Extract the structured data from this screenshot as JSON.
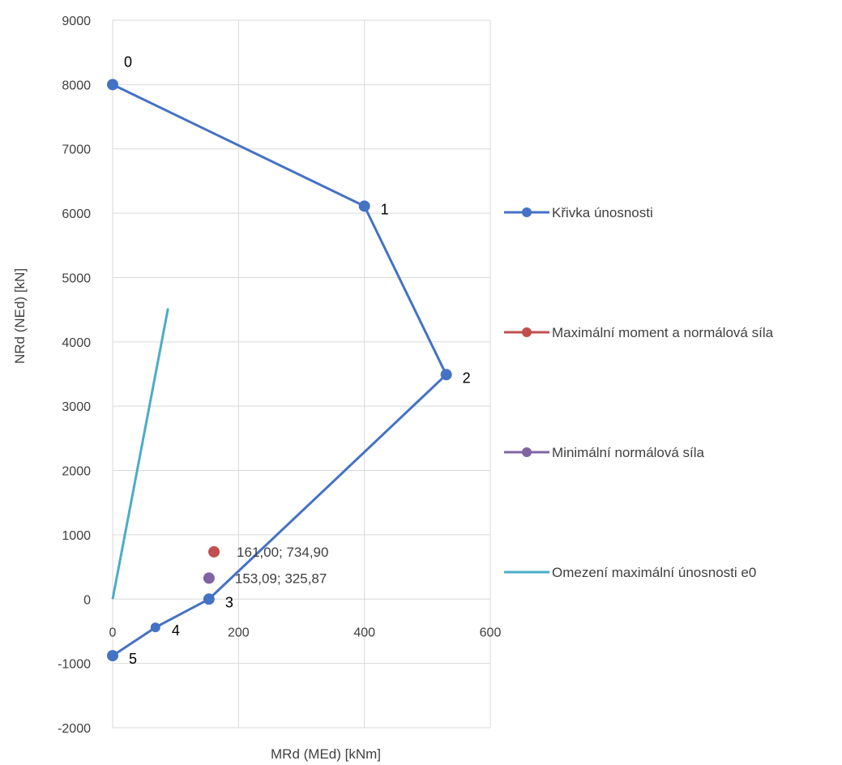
{
  "chart_data": {
    "type": "scatter",
    "xlabel": "MRd (MEd) [kNm]",
    "ylabel": "NRd (NEd) [kN]",
    "xlim": [
      0,
      600
    ],
    "ylim": [
      -2000,
      9000
    ],
    "x_ticks": [
      0,
      200,
      400,
      600
    ],
    "y_ticks": [
      -2000,
      -1000,
      0,
      1000,
      2000,
      3000,
      4000,
      5000,
      6000,
      7000,
      8000,
      9000
    ],
    "x_tick_labels": [
      "0",
      "200",
      "400",
      "600"
    ],
    "y_tick_labels": [
      "-2000",
      "-1000",
      "0",
      "1000",
      "2000",
      "3000",
      "4000",
      "5000",
      "6000",
      "7000",
      "8000",
      "9000"
    ],
    "grid": "vertical and horizontal",
    "legend_position": "right",
    "series": [
      {
        "name": "Křivka únosnosti",
        "style": "line-markers",
        "color": "#4472C4",
        "points": [
          {
            "x": 0,
            "y": 8000,
            "label": "0"
          },
          {
            "x": 400,
            "y": 6110,
            "label": "1"
          },
          {
            "x": 530,
            "y": 3490,
            "label": "2"
          },
          {
            "x": 153,
            "y": 0,
            "label": "3"
          },
          {
            "x": 68,
            "y": -440,
            "label": "4"
          },
          {
            "x": 0,
            "y": -880,
            "label": "5"
          }
        ]
      },
      {
        "name": "Maximální moment a normálová síla",
        "style": "marker",
        "color": "#C0504D",
        "points": [
          {
            "x": 161.0,
            "y": 734.9,
            "label": "161,00; 734,90"
          }
        ]
      },
      {
        "name": "Minimální normálová síla",
        "style": "marker",
        "color": "#8064A2",
        "points": [
          {
            "x": 153.09,
            "y": 325.87,
            "label": "153,09; 325,87"
          }
        ]
      },
      {
        "name": "Omezení maximální únosnosti e0",
        "style": "line",
        "color": "#4BACC6",
        "points": [
          {
            "x": 0,
            "y": 0,
            "label": ""
          },
          {
            "x": 88,
            "y": 4520,
            "label": ""
          }
        ]
      }
    ]
  }
}
